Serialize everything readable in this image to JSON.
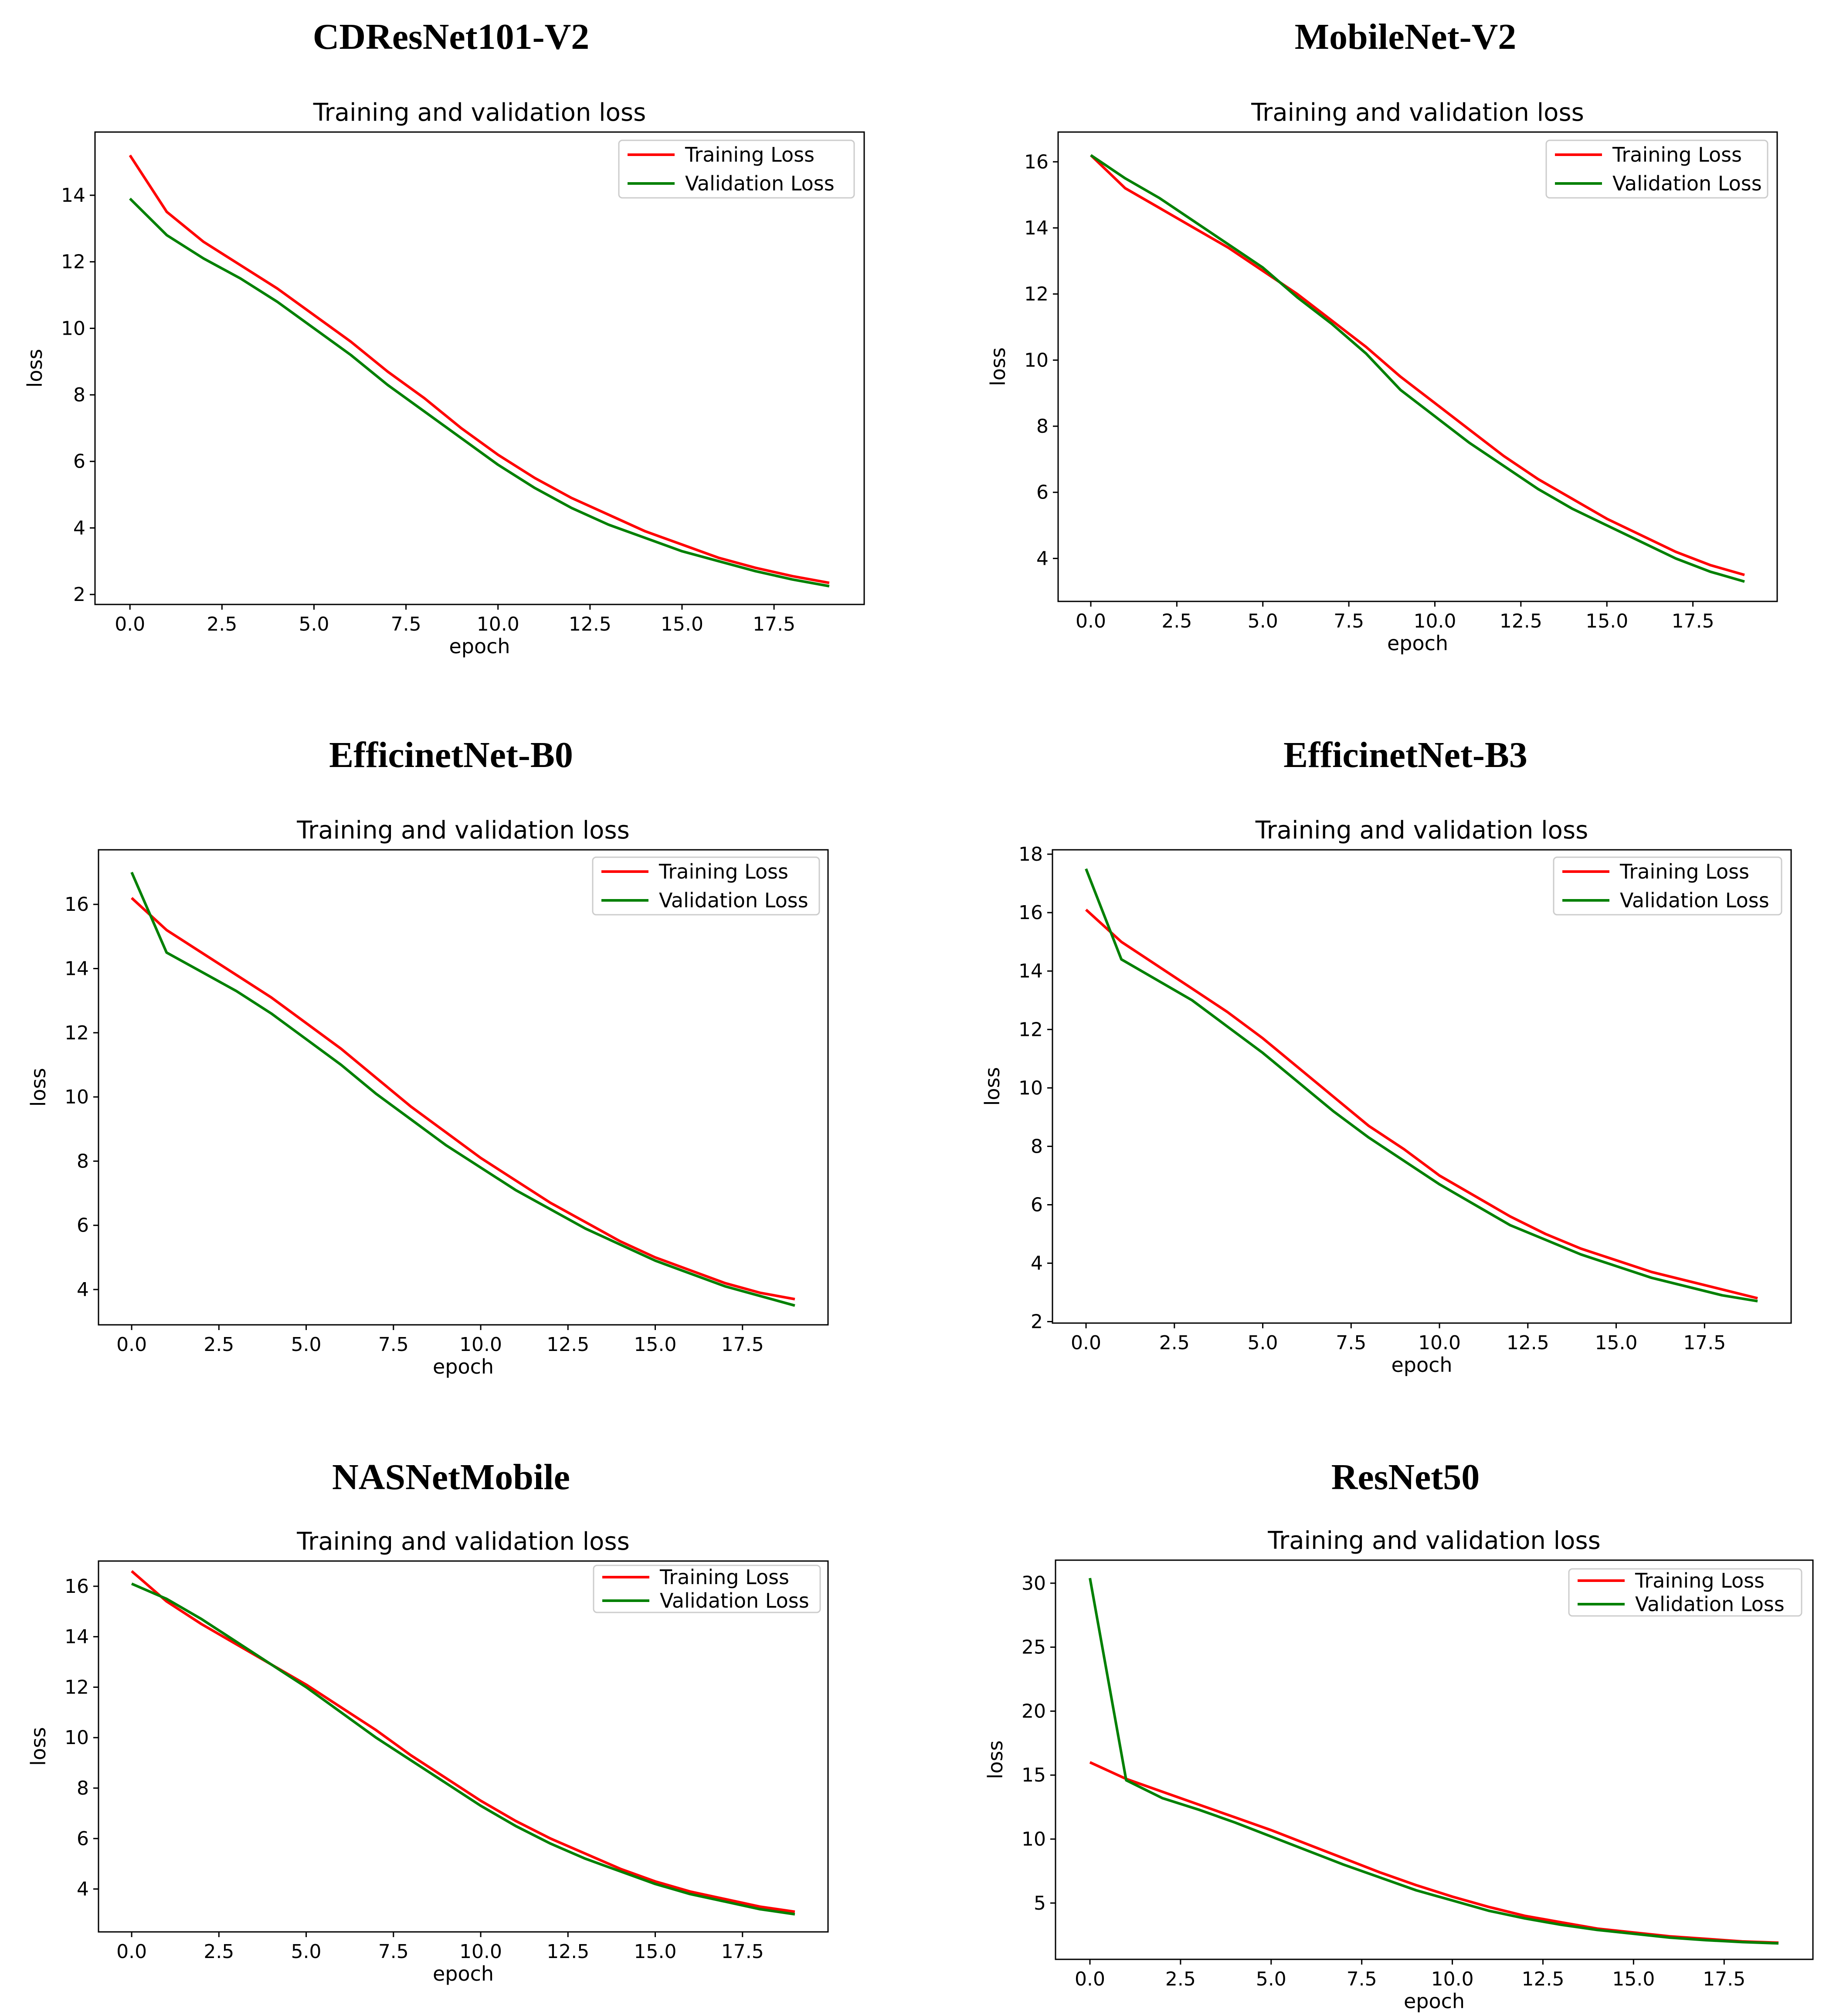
{
  "chart_data": [
    {
      "type": "line",
      "model": "CDResNet101-V2",
      "title": "Training and validation loss",
      "xlabel": "epoch",
      "ylabel": "loss",
      "xlim": [
        -0.95,
        19.95
      ],
      "ylim": [
        1.7,
        15.9
      ],
      "xticks": [
        0,
        2.5,
        5,
        7.5,
        10,
        12.5,
        15,
        17.5
      ],
      "xtick_labels": [
        "0.0",
        "2.5",
        "5.0",
        "7.5",
        "10.0",
        "12.5",
        "15.0",
        "17.5"
      ],
      "yticks": [
        2,
        4,
        6,
        8,
        10,
        12,
        14
      ],
      "ytick_labels": [
        "2",
        "4",
        "6",
        "8",
        "10",
        "12",
        "14"
      ],
      "legend_position": "top-right",
      "series": [
        {
          "name": "Training Loss",
          "color": "#ff0000",
          "x": [
            0,
            1,
            2,
            3,
            4,
            5,
            6,
            7,
            8,
            9,
            10,
            11,
            12,
            13,
            14,
            15,
            16,
            17,
            18,
            19
          ],
          "values": [
            15.2,
            13.5,
            12.6,
            11.9,
            11.2,
            10.4,
            9.6,
            8.7,
            7.9,
            7.0,
            6.2,
            5.5,
            4.9,
            4.4,
            3.9,
            3.5,
            3.1,
            2.8,
            2.55,
            2.35
          ]
        },
        {
          "name": "Validation Loss",
          "color": "#008000",
          "x": [
            0,
            1,
            2,
            3,
            4,
            5,
            6,
            7,
            8,
            9,
            10,
            11,
            12,
            13,
            14,
            15,
            16,
            17,
            18,
            19
          ],
          "values": [
            13.9,
            12.8,
            12.1,
            11.5,
            10.8,
            10.0,
            9.2,
            8.3,
            7.5,
            6.7,
            5.9,
            5.2,
            4.6,
            4.1,
            3.7,
            3.3,
            3.0,
            2.7,
            2.45,
            2.25
          ]
        }
      ]
    },
    {
      "type": "line",
      "model": "MobileNet-V2",
      "title": "Training and validation loss",
      "xlabel": "epoch",
      "ylabel": "loss",
      "xlim": [
        -0.95,
        19.95
      ],
      "ylim": [
        2.7,
        16.9
      ],
      "xticks": [
        0,
        2.5,
        5,
        7.5,
        10,
        12.5,
        15,
        17.5
      ],
      "xtick_labels": [
        "0.0",
        "2.5",
        "5.0",
        "7.5",
        "10.0",
        "12.5",
        "15.0",
        "17.5"
      ],
      "yticks": [
        4,
        6,
        8,
        10,
        12,
        14,
        16
      ],
      "ytick_labels": [
        "4",
        "6",
        "8",
        "10",
        "12",
        "14",
        "16"
      ],
      "legend_position": "top-right",
      "series": [
        {
          "name": "Training Loss",
          "color": "#ff0000",
          "x": [
            0,
            1,
            2,
            3,
            4,
            5,
            6,
            7,
            8,
            9,
            10,
            11,
            12,
            13,
            14,
            15,
            16,
            17,
            18,
            19
          ],
          "values": [
            16.2,
            15.2,
            14.6,
            14.0,
            13.4,
            12.7,
            12.0,
            11.2,
            10.4,
            9.5,
            8.7,
            7.9,
            7.1,
            6.4,
            5.8,
            5.2,
            4.7,
            4.2,
            3.8,
            3.5
          ]
        },
        {
          "name": "Validation Loss",
          "color": "#008000",
          "x": [
            0,
            1,
            2,
            3,
            4,
            5,
            6,
            7,
            8,
            9,
            10,
            11,
            12,
            13,
            14,
            15,
            16,
            17,
            18,
            19
          ],
          "values": [
            16.2,
            15.5,
            14.9,
            14.2,
            13.5,
            12.8,
            11.9,
            11.1,
            10.2,
            9.1,
            8.3,
            7.5,
            6.8,
            6.1,
            5.5,
            5.0,
            4.5,
            4.0,
            3.6,
            3.3
          ]
        }
      ]
    },
    {
      "type": "line",
      "model": "EfficinetNet-B0",
      "title": "Training and validation loss",
      "xlabel": "epoch",
      "ylabel": "loss",
      "xlim": [
        -0.95,
        19.95
      ],
      "ylim": [
        2.9,
        17.7
      ],
      "xticks": [
        0,
        2.5,
        5,
        7.5,
        10,
        12.5,
        15,
        17.5
      ],
      "xtick_labels": [
        "0.0",
        "2.5",
        "5.0",
        "7.5",
        "10.0",
        "12.5",
        "15.0",
        "17.5"
      ],
      "yticks": [
        4,
        6,
        8,
        10,
        12,
        14,
        16
      ],
      "ytick_labels": [
        "4",
        "6",
        "8",
        "10",
        "12",
        "14",
        "16"
      ],
      "legend_position": "top-right",
      "series": [
        {
          "name": "Training Loss",
          "color": "#ff0000",
          "x": [
            0,
            1,
            2,
            3,
            4,
            5,
            6,
            7,
            8,
            9,
            10,
            11,
            12,
            13,
            14,
            15,
            16,
            17,
            18,
            19
          ],
          "values": [
            16.2,
            15.2,
            14.5,
            13.8,
            13.1,
            12.3,
            11.5,
            10.6,
            9.7,
            8.9,
            8.1,
            7.4,
            6.7,
            6.1,
            5.5,
            5.0,
            4.6,
            4.2,
            3.9,
            3.7
          ]
        },
        {
          "name": "Validation Loss",
          "color": "#008000",
          "x": [
            0,
            1,
            2,
            3,
            4,
            5,
            6,
            7,
            8,
            9,
            10,
            11,
            12,
            13,
            14,
            15,
            16,
            17,
            18,
            19
          ],
          "values": [
            17.0,
            14.5,
            13.9,
            13.3,
            12.6,
            11.8,
            11.0,
            10.1,
            9.3,
            8.5,
            7.8,
            7.1,
            6.5,
            5.9,
            5.4,
            4.9,
            4.5,
            4.1,
            3.8,
            3.5
          ]
        }
      ]
    },
    {
      "type": "line",
      "model": "EfficinetNet-B3",
      "title": "Training and validation loss",
      "xlabel": "epoch",
      "ylabel": "loss",
      "xlim": [
        -0.95,
        19.95
      ],
      "ylim": [
        1.95,
        18.15
      ],
      "xticks": [
        0,
        2.5,
        5,
        7.5,
        10,
        12.5,
        15,
        17.5
      ],
      "xtick_labels": [
        "0.0",
        "2.5",
        "5.0",
        "7.5",
        "10.0",
        "12.5",
        "15.0",
        "17.5"
      ],
      "yticks": [
        2,
        4,
        6,
        8,
        10,
        12,
        14,
        16,
        18
      ],
      "ytick_labels": [
        "2",
        "4",
        "6",
        "8",
        "10",
        "12",
        "14",
        "16",
        "18"
      ],
      "legend_position": "top-right",
      "series": [
        {
          "name": "Training Loss",
          "color": "#ff0000",
          "x": [
            0,
            1,
            2,
            3,
            4,
            5,
            6,
            7,
            8,
            9,
            10,
            11,
            12,
            13,
            14,
            15,
            16,
            17,
            18,
            19
          ],
          "values": [
            16.1,
            15.0,
            14.2,
            13.4,
            12.6,
            11.7,
            10.7,
            9.7,
            8.7,
            7.9,
            7.0,
            6.3,
            5.6,
            5.0,
            4.5,
            4.1,
            3.7,
            3.4,
            3.1,
            2.8
          ]
        },
        {
          "name": "Validation Loss",
          "color": "#008000",
          "x": [
            0,
            1,
            2,
            3,
            4,
            5,
            6,
            7,
            8,
            9,
            10,
            11,
            12,
            13,
            14,
            15,
            16,
            17,
            18,
            19
          ],
          "values": [
            17.5,
            14.4,
            13.7,
            13.0,
            12.1,
            11.2,
            10.2,
            9.2,
            8.3,
            7.5,
            6.7,
            6.0,
            5.3,
            4.8,
            4.3,
            3.9,
            3.5,
            3.2,
            2.9,
            2.7
          ]
        }
      ]
    },
    {
      "type": "line",
      "model": "NASNetMobile",
      "title": "Training and validation loss",
      "xlabel": "epoch",
      "ylabel": "loss",
      "xlim": [
        -0.95,
        19.95
      ],
      "ylim": [
        2.3,
        17.0
      ],
      "xticks": [
        0,
        2.5,
        5,
        7.5,
        10,
        12.5,
        15,
        17.5
      ],
      "xtick_labels": [
        "0.0",
        "2.5",
        "5.0",
        "7.5",
        "10.0",
        "12.5",
        "15.0",
        "17.5"
      ],
      "yticks": [
        4,
        6,
        8,
        10,
        12,
        14,
        16
      ],
      "ytick_labels": [
        "4",
        "6",
        "8",
        "10",
        "12",
        "14",
        "16"
      ],
      "legend_position": "top-right",
      "series": [
        {
          "name": "Training Loss",
          "color": "#ff0000",
          "x": [
            0,
            1,
            2,
            3,
            4,
            5,
            6,
            7,
            8,
            9,
            10,
            11,
            12,
            13,
            14,
            15,
            16,
            17,
            18,
            19
          ],
          "values": [
            16.6,
            15.4,
            14.5,
            13.7,
            12.9,
            12.1,
            11.2,
            10.3,
            9.3,
            8.4,
            7.5,
            6.7,
            6.0,
            5.4,
            4.8,
            4.3,
            3.9,
            3.6,
            3.3,
            3.1
          ]
        },
        {
          "name": "Validation Loss",
          "color": "#008000",
          "x": [
            0,
            1,
            2,
            3,
            4,
            5,
            6,
            7,
            8,
            9,
            10,
            11,
            12,
            13,
            14,
            15,
            16,
            17,
            18,
            19
          ],
          "values": [
            16.1,
            15.5,
            14.7,
            13.8,
            12.9,
            12.0,
            11.0,
            10.0,
            9.1,
            8.2,
            7.3,
            6.5,
            5.8,
            5.2,
            4.7,
            4.2,
            3.8,
            3.5,
            3.2,
            3.0
          ]
        }
      ]
    },
    {
      "type": "line",
      "model": "ResNet50",
      "title": "Training and validation loss",
      "xlabel": "epoch",
      "ylabel": "loss",
      "xlim": [
        -0.95,
        19.95
      ],
      "ylim": [
        0.6,
        31.8
      ],
      "xticks": [
        0,
        2.5,
        5,
        7.5,
        10,
        12.5,
        15,
        17.5
      ],
      "xtick_labels": [
        "0.0",
        "2.5",
        "5.0",
        "7.5",
        "10.0",
        "12.5",
        "15.0",
        "17.5"
      ],
      "yticks": [
        5,
        10,
        15,
        20,
        25,
        30
      ],
      "ytick_labels": [
        "5",
        "10",
        "15",
        "20",
        "25",
        "30"
      ],
      "legend_position": "top-right",
      "series": [
        {
          "name": "Training Loss",
          "color": "#ff0000",
          "x": [
            0,
            1,
            2,
            3,
            4,
            5,
            6,
            7,
            8,
            9,
            10,
            11,
            12,
            13,
            14,
            15,
            16,
            17,
            18,
            19
          ],
          "values": [
            16.0,
            14.7,
            13.7,
            12.7,
            11.7,
            10.7,
            9.6,
            8.5,
            7.4,
            6.4,
            5.5,
            4.7,
            4.0,
            3.5,
            3.0,
            2.7,
            2.4,
            2.2,
            2.0,
            1.9
          ]
        },
        {
          "name": "Validation Loss",
          "color": "#008000",
          "x": [
            0,
            1,
            2,
            3,
            4,
            5,
            6,
            7,
            8,
            9,
            10,
            11,
            12,
            13,
            14,
            15,
            16,
            17,
            18,
            19
          ],
          "values": [
            30.4,
            14.6,
            13.2,
            12.3,
            11.3,
            10.2,
            9.1,
            8.0,
            7.0,
            6.0,
            5.2,
            4.4,
            3.8,
            3.3,
            2.9,
            2.6,
            2.3,
            2.1,
            1.95,
            1.85
          ]
        }
      ]
    }
  ]
}
